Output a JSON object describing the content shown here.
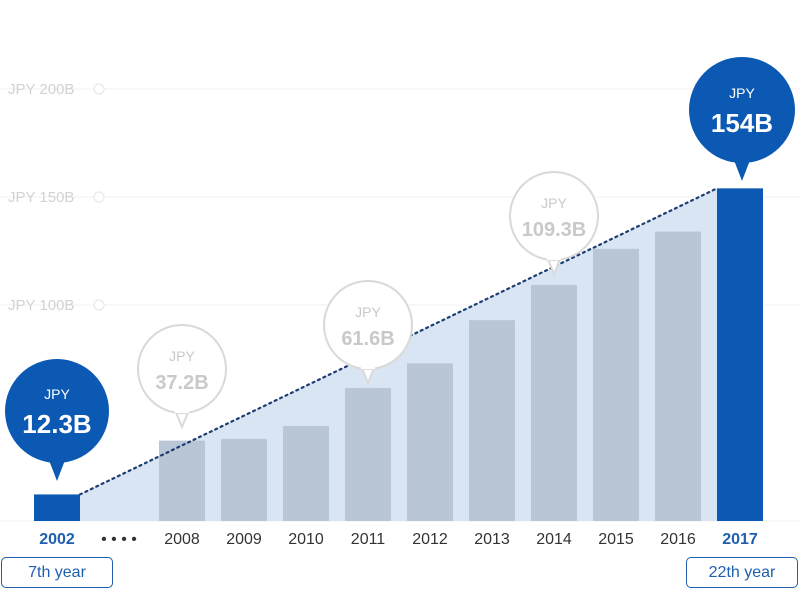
{
  "chart_data": {
    "type": "bar",
    "categories": [
      "2002",
      "2008",
      "2009",
      "2010",
      "2011",
      "2012",
      "2013",
      "2014",
      "2015",
      "2016",
      "2017"
    ],
    "values": [
      12.3,
      37.2,
      38,
      44,
      61.6,
      73,
      93,
      109.3,
      126,
      134,
      154
    ],
    "gap_marker": "• • • •",
    "ylim": [
      0,
      200
    ],
    "ytick_values": [
      100,
      150,
      200
    ],
    "yticks": [
      "JPY 100B",
      "JPY 150B",
      "JPY 200B"
    ],
    "grid": true,
    "highlight_categories": [
      "2002",
      "2017"
    ],
    "callouts": [
      {
        "category": "2002",
        "unit": "JPY",
        "value_label": "12.3B",
        "style": "filled"
      },
      {
        "category": "2008",
        "unit": "JPY",
        "value_label": "37.2B",
        "style": "outline"
      },
      {
        "category": "2011",
        "unit": "JPY",
        "value_label": "61.6B",
        "style": "outline"
      },
      {
        "category": "2014",
        "unit": "JPY",
        "value_label": "109.3B",
        "style": "outline"
      },
      {
        "category": "2017",
        "unit": "JPY",
        "value_label": "154B",
        "style": "filled"
      }
    ],
    "year_notes": [
      {
        "category": "2002",
        "label": "7th year"
      },
      {
        "category": "2017",
        "label": "22th year"
      }
    ]
  },
  "colors": {
    "highlight": "#0b59b3",
    "bar": "#b9c6d6",
    "area": "#d9e5f2",
    "grid": "#f0f0f0",
    "outline": "#d9d9d9"
  }
}
